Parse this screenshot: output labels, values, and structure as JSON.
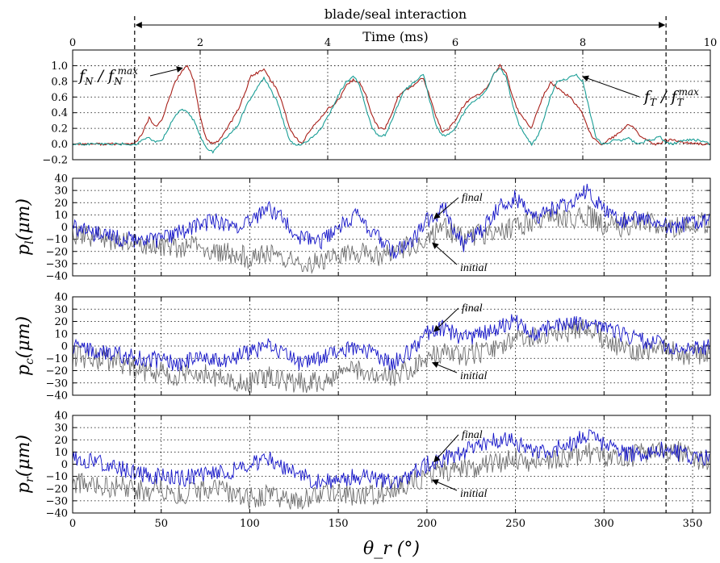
{
  "chart_data": [
    {
      "id": "forces",
      "type": "line",
      "top_axis_label": "Time (ms)",
      "top_axis_ticks": [
        "0",
        "2",
        "4",
        "6",
        "8",
        "10"
      ],
      "xlim": [
        0,
        10
      ],
      "ylim": [
        -0.2,
        1.2
      ],
      "y_ticks": [
        "−0.2",
        "0.0",
        "0.2",
        "0.4",
        "0.6",
        "0.8",
        "1.0"
      ],
      "grid": true,
      "annotations": {
        "normal": "f_N / f_N^max",
        "tangential": "f_T / f_T^max"
      },
      "series": [
        {
          "color": "#a8201a",
          "x": [
            0,
            0.5,
            0.9,
            1.0,
            1.1,
            1.2,
            1.3,
            1.4,
            1.5,
            1.6,
            1.7,
            1.8,
            1.9,
            2.0,
            2.1,
            2.2,
            2.3,
            2.5,
            2.6,
            2.7,
            2.8,
            3.0,
            3.2,
            3.3,
            3.4,
            3.5,
            3.6,
            3.7,
            3.8,
            3.9,
            4.0,
            4.1,
            4.2,
            4.3,
            4.4,
            4.5,
            4.6,
            4.7,
            4.8,
            4.9,
            5.0,
            5.1,
            5.2,
            5.3,
            5.4,
            5.5,
            5.6,
            5.7,
            5.8,
            5.9,
            6.0,
            6.1,
            6.2,
            6.3,
            6.4,
            6.5,
            6.6,
            6.7,
            6.8,
            6.9,
            7.0,
            7.1,
            7.2,
            7.3,
            7.4,
            7.5,
            7.6,
            7.7,
            7.8,
            7.9,
            8.0,
            8.1,
            8.2,
            8.3,
            8.4,
            8.5,
            8.6,
            8.7,
            8.8,
            8.9,
            9.0,
            9.1,
            9.2,
            9.3,
            9.4,
            9.6,
            9.8,
            10.0
          ],
          "y": [
            0.0,
            0.0,
            0.0,
            0.02,
            0.15,
            0.33,
            0.22,
            0.3,
            0.55,
            0.78,
            0.92,
            1.0,
            0.8,
            0.35,
            0.05,
            0.0,
            0.05,
            0.3,
            0.45,
            0.65,
            0.87,
            0.95,
            0.7,
            0.5,
            0.2,
            0.08,
            0.0,
            0.15,
            0.25,
            0.35,
            0.45,
            0.5,
            0.6,
            0.75,
            0.82,
            0.78,
            0.62,
            0.35,
            0.2,
            0.2,
            0.38,
            0.6,
            0.68,
            0.72,
            0.78,
            0.85,
            0.6,
            0.35,
            0.15,
            0.2,
            0.3,
            0.45,
            0.55,
            0.6,
            0.65,
            0.72,
            0.88,
            1.0,
            0.9,
            0.6,
            0.4,
            0.3,
            0.2,
            0.45,
            0.65,
            0.78,
            0.72,
            0.65,
            0.6,
            0.5,
            0.38,
            0.15,
            0.05,
            0.0,
            0.05,
            0.1,
            0.15,
            0.25,
            0.22,
            0.1,
            0.05,
            0.0,
            0.0,
            0.05,
            0.05,
            0.02,
            0.0,
            0.0
          ]
        },
        {
          "color": "#1a9e96",
          "x": [
            0,
            0.5,
            0.9,
            1.0,
            1.1,
            1.2,
            1.3,
            1.4,
            1.5,
            1.6,
            1.7,
            1.8,
            1.9,
            2.0,
            2.1,
            2.2,
            2.3,
            2.5,
            2.6,
            2.7,
            2.8,
            3.0,
            3.2,
            3.3,
            3.4,
            3.5,
            3.6,
            3.7,
            3.8,
            3.9,
            4.0,
            4.1,
            4.2,
            4.3,
            4.4,
            4.5,
            4.6,
            4.7,
            4.8,
            4.9,
            5.0,
            5.1,
            5.2,
            5.3,
            5.4,
            5.5,
            5.6,
            5.7,
            5.8,
            5.9,
            6.0,
            6.1,
            6.2,
            6.3,
            6.4,
            6.5,
            6.6,
            6.7,
            6.8,
            6.9,
            7.0,
            7.1,
            7.2,
            7.3,
            7.4,
            7.5,
            7.6,
            7.7,
            7.8,
            7.9,
            8.0,
            8.1,
            8.2,
            8.3,
            8.4,
            8.5,
            8.6,
            8.7,
            8.8,
            8.9,
            9.0,
            9.1,
            9.2,
            9.3,
            9.4,
            9.6,
            9.8,
            10.0
          ],
          "y": [
            0.0,
            0.0,
            0.0,
            0.0,
            0.05,
            0.08,
            0.02,
            0.05,
            0.2,
            0.35,
            0.45,
            0.42,
            0.3,
            0.1,
            -0.05,
            -0.1,
            0.0,
            0.15,
            0.25,
            0.45,
            0.6,
            0.85,
            0.55,
            0.3,
            0.05,
            -0.02,
            0.0,
            0.05,
            0.12,
            0.2,
            0.35,
            0.5,
            0.68,
            0.8,
            0.88,
            0.75,
            0.45,
            0.2,
            0.1,
            0.12,
            0.28,
            0.5,
            0.68,
            0.75,
            0.82,
            0.9,
            0.55,
            0.25,
            0.1,
            0.12,
            0.2,
            0.35,
            0.48,
            0.55,
            0.6,
            0.7,
            0.9,
            0.98,
            0.85,
            0.5,
            0.25,
            0.1,
            0.0,
            0.1,
            0.35,
            0.62,
            0.8,
            0.82,
            0.85,
            0.88,
            0.8,
            0.45,
            0.1,
            0.0,
            0.02,
            0.05,
            0.05,
            0.08,
            0.03,
            0.0,
            0.05,
            0.05,
            0.1,
            0.02,
            0.0,
            0.05,
            0.05,
            0.0
          ]
        }
      ]
    },
    {
      "id": "pl",
      "type": "line",
      "ylabel": "p_l (μm)",
      "xlim": [
        0,
        360
      ],
      "ylim": [
        -40,
        40
      ],
      "y_ticks": [
        "−40",
        "−30",
        "−20",
        "−10",
        "0",
        "10",
        "20",
        "30",
        "40"
      ],
      "grid": true,
      "annotations": {
        "final": "final",
        "initial": "initial"
      },
      "series": [
        {
          "name": "final",
          "color": "#1414c8",
          "x": [
            0,
            10,
            20,
            30,
            40,
            50,
            60,
            70,
            80,
            90,
            100,
            110,
            120,
            130,
            140,
            150,
            160,
            170,
            180,
            190,
            200,
            210,
            220,
            230,
            240,
            250,
            260,
            270,
            280,
            290,
            300,
            310,
            320,
            330,
            340,
            350,
            360
          ],
          "y": [
            0,
            -5,
            -8,
            -10,
            -12,
            -10,
            -5,
            2,
            5,
            0,
            5,
            15,
            5,
            -10,
            -12,
            0,
            10,
            -5,
            -20,
            -15,
            5,
            15,
            -15,
            -5,
            15,
            25,
            5,
            15,
            20,
            30,
            15,
            5,
            8,
            2,
            0,
            5,
            5
          ]
        },
        {
          "name": "initial",
          "color": "#6e6e6e",
          "x": [
            0,
            10,
            20,
            30,
            40,
            50,
            60,
            70,
            80,
            90,
            100,
            110,
            120,
            130,
            140,
            150,
            160,
            170,
            180,
            190,
            200,
            210,
            220,
            230,
            240,
            250,
            260,
            270,
            280,
            290,
            300,
            310,
            320,
            330,
            340,
            350,
            360
          ],
          "y": [
            -5,
            -8,
            -10,
            -12,
            -15,
            -15,
            -18,
            -15,
            -20,
            -22,
            -25,
            -20,
            -25,
            -28,
            -30,
            -22,
            -20,
            -25,
            -20,
            -15,
            -10,
            0,
            -10,
            -5,
            -5,
            0,
            5,
            8,
            5,
            10,
            2,
            0,
            5,
            2,
            0,
            5,
            2
          ]
        }
      ]
    },
    {
      "id": "pc",
      "type": "line",
      "ylabel": "p_c (μm)",
      "xlim": [
        0,
        360
      ],
      "ylim": [
        -40,
        40
      ],
      "y_ticks": [
        "−40",
        "−30",
        "−20",
        "−10",
        "0",
        "10",
        "20",
        "30",
        "40"
      ],
      "grid": true,
      "annotations": {
        "final": "final",
        "initial": "initial"
      },
      "series": [
        {
          "name": "final",
          "color": "#1414c8",
          "x": [
            0,
            10,
            20,
            30,
            40,
            50,
            60,
            70,
            80,
            90,
            100,
            110,
            120,
            130,
            140,
            150,
            160,
            170,
            180,
            190,
            200,
            210,
            220,
            230,
            240,
            250,
            260,
            270,
            280,
            290,
            300,
            310,
            320,
            330,
            340,
            350,
            360
          ],
          "y": [
            0,
            -2,
            -5,
            -8,
            -10,
            -12,
            -15,
            -10,
            -12,
            -10,
            -5,
            0,
            -8,
            -15,
            -10,
            -5,
            0,
            -5,
            -15,
            -5,
            10,
            15,
            5,
            10,
            15,
            20,
            10,
            15,
            18,
            20,
            15,
            10,
            5,
            2,
            0,
            -2,
            0
          ]
        },
        {
          "name": "initial",
          "color": "#6e6e6e",
          "x": [
            0,
            10,
            20,
            30,
            40,
            50,
            60,
            70,
            80,
            90,
            100,
            110,
            120,
            130,
            140,
            150,
            160,
            170,
            180,
            190,
            200,
            210,
            220,
            230,
            240,
            250,
            260,
            270,
            280,
            290,
            300,
            310,
            320,
            330,
            340,
            350,
            360
          ],
          "y": [
            -8,
            -10,
            -12,
            -15,
            -20,
            -22,
            -25,
            -22,
            -25,
            -28,
            -30,
            -25,
            -28,
            -30,
            -28,
            -25,
            -20,
            -22,
            -25,
            -18,
            -10,
            -5,
            -8,
            -5,
            -2,
            5,
            8,
            10,
            12,
            15,
            5,
            0,
            -5,
            -2,
            -5,
            -8,
            -5
          ]
        }
      ]
    },
    {
      "id": "pr",
      "type": "line",
      "ylabel": "p_r (μm)",
      "x_ticks": [
        "0",
        "50",
        "100",
        "150",
        "200",
        "250",
        "300",
        "350"
      ],
      "xlabel": "θ_r (°)",
      "xlim": [
        0,
        360
      ],
      "ylim": [
        -40,
        40
      ],
      "y_ticks": [
        "−40",
        "−30",
        "−20",
        "−10",
        "0",
        "10",
        "20",
        "30",
        "40"
      ],
      "grid": true,
      "annotations": {
        "final": "final",
        "initial": "initial"
      },
      "series": [
        {
          "name": "final",
          "color": "#1414c8",
          "x": [
            0,
            10,
            20,
            30,
            40,
            50,
            60,
            70,
            80,
            90,
            100,
            110,
            120,
            130,
            140,
            150,
            160,
            170,
            180,
            190,
            200,
            210,
            220,
            230,
            240,
            250,
            260,
            270,
            280,
            290,
            300,
            310,
            320,
            330,
            340,
            350,
            360
          ],
          "y": [
            5,
            2,
            0,
            -5,
            -8,
            -10,
            -12,
            -10,
            -8,
            -5,
            0,
            5,
            -5,
            -10,
            -15,
            -12,
            -10,
            -12,
            -15,
            -10,
            0,
            5,
            10,
            15,
            20,
            18,
            10,
            12,
            15,
            25,
            15,
            10,
            8,
            12,
            10,
            5,
            5
          ]
        },
        {
          "name": "initial",
          "color": "#6e6e6e",
          "x": [
            0,
            10,
            20,
            30,
            40,
            50,
            60,
            70,
            80,
            90,
            100,
            110,
            120,
            130,
            140,
            150,
            160,
            170,
            180,
            190,
            200,
            210,
            220,
            230,
            240,
            250,
            260,
            270,
            280,
            290,
            300,
            310,
            320,
            330,
            340,
            350,
            360
          ],
          "y": [
            -15,
            -18,
            -20,
            -18,
            -22,
            -20,
            -25,
            -22,
            -20,
            -25,
            -28,
            -25,
            -30,
            -28,
            -25,
            -22,
            -28,
            -25,
            -20,
            -15,
            -10,
            -5,
            -5,
            -2,
            0,
            5,
            2,
            5,
            5,
            10,
            5,
            5,
            8,
            10,
            12,
            5,
            2
          ]
        }
      ]
    }
  ],
  "interaction": {
    "label": "blade/seal interaction",
    "start_deg": 35,
    "end_deg": 335
  }
}
